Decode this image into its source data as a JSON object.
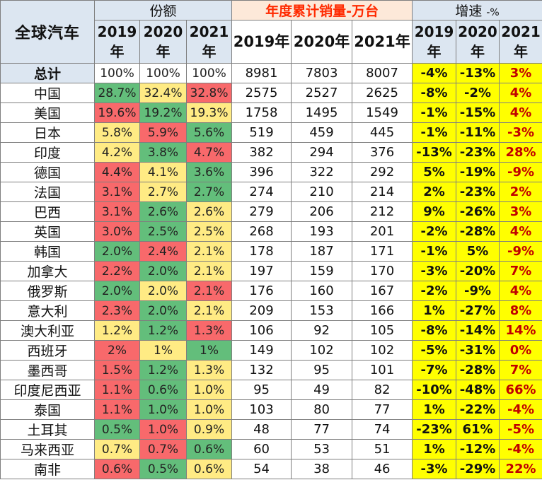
{
  "header": {
    "corner_label": "全球汽车",
    "share_group": "份额",
    "sales_group": "年度累计销量-万台",
    "growth_group": "增速",
    "growth_suffix": "-%",
    "year_suffix": "年",
    "share_years": [
      "2019",
      "2020",
      "2021"
    ],
    "sales_years": [
      "2019年",
      "2020年",
      "2021年"
    ],
    "growth_years": [
      "2019",
      "2020",
      "2021"
    ]
  },
  "colors": {
    "green": "#63be7b",
    "yellow": "#ffeb84",
    "red": "#f8696b",
    "white": "#ffffff",
    "growth_bg": "#ffff00",
    "growth_red_text": "#c00000"
  },
  "rows": [
    {
      "name": "总计",
      "total": true,
      "share": [
        {
          "v": "100%",
          "c": "white"
        },
        {
          "v": "100%",
          "c": "white"
        },
        {
          "v": "100%",
          "c": "white"
        }
      ],
      "sales": [
        "8981",
        "7803",
        "8007"
      ],
      "growth": [
        {
          "v": "-4%",
          "red": false
        },
        {
          "v": "-13%",
          "red": false
        },
        {
          "v": "3%",
          "red": true
        }
      ]
    },
    {
      "name": "中国",
      "share": [
        {
          "v": "28.7%",
          "c": "green"
        },
        {
          "v": "32.4%",
          "c": "yellow"
        },
        {
          "v": "32.8%",
          "c": "red"
        }
      ],
      "sales": [
        "2575",
        "2527",
        "2625"
      ],
      "growth": [
        {
          "v": "-8%",
          "red": false
        },
        {
          "v": "-2%",
          "red": false
        },
        {
          "v": "4%",
          "red": true
        }
      ]
    },
    {
      "name": "美国",
      "share": [
        {
          "v": "19.6%",
          "c": "red"
        },
        {
          "v": "19.2%",
          "c": "green"
        },
        {
          "v": "19.3%",
          "c": "yellow"
        }
      ],
      "sales": [
        "1758",
        "1495",
        "1549"
      ],
      "growth": [
        {
          "v": "-1%",
          "red": false
        },
        {
          "v": "-15%",
          "red": false
        },
        {
          "v": "4%",
          "red": true
        }
      ]
    },
    {
      "name": "日本",
      "share": [
        {
          "v": "5.8%",
          "c": "yellow"
        },
        {
          "v": "5.9%",
          "c": "red"
        },
        {
          "v": "5.6%",
          "c": "green"
        }
      ],
      "sales": [
        "519",
        "459",
        "445"
      ],
      "growth": [
        {
          "v": "-1%",
          "red": false
        },
        {
          "v": "-11%",
          "red": false
        },
        {
          "v": "-3%",
          "red": true
        }
      ]
    },
    {
      "name": "印度",
      "share": [
        {
          "v": "4.2%",
          "c": "yellow"
        },
        {
          "v": "3.8%",
          "c": "green"
        },
        {
          "v": "4.7%",
          "c": "red"
        }
      ],
      "sales": [
        "382",
        "294",
        "376"
      ],
      "growth": [
        {
          "v": "-13%",
          "red": false
        },
        {
          "v": "-23%",
          "red": false
        },
        {
          "v": "28%",
          "red": true
        }
      ]
    },
    {
      "name": "德国",
      "share": [
        {
          "v": "4.4%",
          "c": "red"
        },
        {
          "v": "4.1%",
          "c": "yellow"
        },
        {
          "v": "3.6%",
          "c": "green"
        }
      ],
      "sales": [
        "396",
        "322",
        "292"
      ],
      "growth": [
        {
          "v": "5%",
          "red": false
        },
        {
          "v": "-19%",
          "red": false
        },
        {
          "v": "-9%",
          "red": true
        }
      ]
    },
    {
      "name": "法国",
      "share": [
        {
          "v": "3.1%",
          "c": "red"
        },
        {
          "v": "2.7%",
          "c": "yellow"
        },
        {
          "v": "2.7%",
          "c": "green"
        }
      ],
      "sales": [
        "274",
        "210",
        "214"
      ],
      "growth": [
        {
          "v": "2%",
          "red": false
        },
        {
          "v": "-23%",
          "red": false
        },
        {
          "v": "2%",
          "red": true
        }
      ]
    },
    {
      "name": "巴西",
      "share": [
        {
          "v": "3.1%",
          "c": "red"
        },
        {
          "v": "2.6%",
          "c": "green"
        },
        {
          "v": "2.6%",
          "c": "yellow"
        }
      ],
      "sales": [
        "279",
        "206",
        "212"
      ],
      "growth": [
        {
          "v": "9%",
          "red": false
        },
        {
          "v": "-26%",
          "red": false
        },
        {
          "v": "3%",
          "red": true
        }
      ]
    },
    {
      "name": "英国",
      "share": [
        {
          "v": "3.0%",
          "c": "red"
        },
        {
          "v": "2.5%",
          "c": "green"
        },
        {
          "v": "2.5%",
          "c": "yellow"
        }
      ],
      "sales": [
        "268",
        "193",
        "201"
      ],
      "growth": [
        {
          "v": "-2%",
          "red": false
        },
        {
          "v": "-28%",
          "red": false
        },
        {
          "v": "4%",
          "red": true
        }
      ]
    },
    {
      "name": "韩国",
      "share": [
        {
          "v": "2.0%",
          "c": "green"
        },
        {
          "v": "2.4%",
          "c": "red"
        },
        {
          "v": "2.1%",
          "c": "yellow"
        }
      ],
      "sales": [
        "178",
        "187",
        "171"
      ],
      "growth": [
        {
          "v": "-1%",
          "red": false
        },
        {
          "v": "5%",
          "red": false
        },
        {
          "v": "-9%",
          "red": true
        }
      ]
    },
    {
      "name": "加拿大",
      "share": [
        {
          "v": "2.2%",
          "c": "red"
        },
        {
          "v": "2.0%",
          "c": "green"
        },
        {
          "v": "2.1%",
          "c": "yellow"
        }
      ],
      "sales": [
        "197",
        "159",
        "170"
      ],
      "growth": [
        {
          "v": "-3%",
          "red": false
        },
        {
          "v": "-20%",
          "red": false
        },
        {
          "v": "7%",
          "red": true
        }
      ]
    },
    {
      "name": "俄罗斯",
      "share": [
        {
          "v": "2.0%",
          "c": "green"
        },
        {
          "v": "2.0%",
          "c": "yellow"
        },
        {
          "v": "2.1%",
          "c": "red"
        }
      ],
      "sales": [
        "176",
        "160",
        "167"
      ],
      "growth": [
        {
          "v": "-2%",
          "red": false
        },
        {
          "v": "-9%",
          "red": false
        },
        {
          "v": "4%",
          "red": true
        }
      ]
    },
    {
      "name": "意大利",
      "share": [
        {
          "v": "2.3%",
          "c": "red"
        },
        {
          "v": "2.0%",
          "c": "green"
        },
        {
          "v": "2.1%",
          "c": "yellow"
        }
      ],
      "sales": [
        "209",
        "153",
        "166"
      ],
      "growth": [
        {
          "v": "1%",
          "red": false
        },
        {
          "v": "-27%",
          "red": false
        },
        {
          "v": "8%",
          "red": true
        }
      ]
    },
    {
      "name": "澳大利亚",
      "share": [
        {
          "v": "1.2%",
          "c": "yellow"
        },
        {
          "v": "1.2%",
          "c": "green"
        },
        {
          "v": "1.3%",
          "c": "red"
        }
      ],
      "sales": [
        "106",
        "92",
        "105"
      ],
      "growth": [
        {
          "v": "-8%",
          "red": false
        },
        {
          "v": "-14%",
          "red": false
        },
        {
          "v": "14%",
          "red": true
        }
      ]
    },
    {
      "name": "西班牙",
      "share": [
        {
          "v": "2%",
          "c": "red"
        },
        {
          "v": "1%",
          "c": "yellow"
        },
        {
          "v": "1%",
          "c": "green"
        }
      ],
      "sales": [
        "149",
        "102",
        "102"
      ],
      "growth": [
        {
          "v": "-5%",
          "red": false
        },
        {
          "v": "-31%",
          "red": false
        },
        {
          "v": "0%",
          "red": true
        }
      ]
    },
    {
      "name": "墨西哥",
      "share": [
        {
          "v": "1.5%",
          "c": "red"
        },
        {
          "v": "1.2%",
          "c": "green"
        },
        {
          "v": "1.3%",
          "c": "yellow"
        }
      ],
      "sales": [
        "132",
        "95",
        "101"
      ],
      "growth": [
        {
          "v": "-7%",
          "red": false
        },
        {
          "v": "-28%",
          "red": false
        },
        {
          "v": "7%",
          "red": true
        }
      ]
    },
    {
      "name": "印度尼西亚",
      "share": [
        {
          "v": "1.1%",
          "c": "red"
        },
        {
          "v": "0.6%",
          "c": "green"
        },
        {
          "v": "1.0%",
          "c": "yellow"
        }
      ],
      "sales": [
        "95",
        "49",
        "82"
      ],
      "growth": [
        {
          "v": "-10%",
          "red": false
        },
        {
          "v": "-48%",
          "red": false
        },
        {
          "v": "66%",
          "red": true
        }
      ]
    },
    {
      "name": "泰国",
      "share": [
        {
          "v": "1.1%",
          "c": "red"
        },
        {
          "v": "1.0%",
          "c": "green"
        },
        {
          "v": "1.0%",
          "c": "yellow"
        }
      ],
      "sales": [
        "103",
        "80",
        "77"
      ],
      "growth": [
        {
          "v": "1%",
          "red": false
        },
        {
          "v": "-22%",
          "red": false
        },
        {
          "v": "-4%",
          "red": true
        }
      ]
    },
    {
      "name": "土耳其",
      "share": [
        {
          "v": "0.5%",
          "c": "green"
        },
        {
          "v": "1.0%",
          "c": "red"
        },
        {
          "v": "0.9%",
          "c": "yellow"
        }
      ],
      "sales": [
        "48",
        "77",
        "74"
      ],
      "growth": [
        {
          "v": "-23%",
          "red": false
        },
        {
          "v": "61%",
          "red": false
        },
        {
          "v": "-5%",
          "red": true
        }
      ]
    },
    {
      "name": "马来西亚",
      "share": [
        {
          "v": "0.7%",
          "c": "yellow"
        },
        {
          "v": "0.7%",
          "c": "red"
        },
        {
          "v": "0.6%",
          "c": "green"
        }
      ],
      "sales": [
        "60",
        "53",
        "51"
      ],
      "growth": [
        {
          "v": "1%",
          "red": false
        },
        {
          "v": "-12%",
          "red": false
        },
        {
          "v": "-4%",
          "red": true
        }
      ]
    },
    {
      "name": "南非",
      "share": [
        {
          "v": "0.6%",
          "c": "red"
        },
        {
          "v": "0.5%",
          "c": "green"
        },
        {
          "v": "0.6%",
          "c": "yellow"
        }
      ],
      "sales": [
        "54",
        "38",
        "46"
      ],
      "growth": [
        {
          "v": "-3%",
          "red": false
        },
        {
          "v": "-29%",
          "red": false
        },
        {
          "v": "22%",
          "red": true
        }
      ]
    }
  ]
}
